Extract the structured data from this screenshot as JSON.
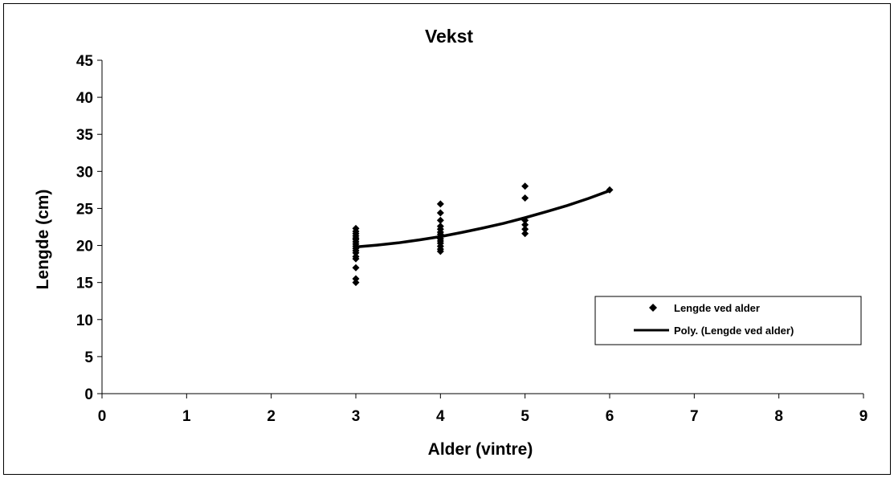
{
  "chart_data": {
    "type": "scatter",
    "title": "Vekst",
    "xlabel": "Alder (vintre)",
    "ylabel": "Lengde (cm)",
    "xlim": [
      0,
      9
    ],
    "ylim": [
      0,
      45
    ],
    "xticks": [
      0,
      1,
      2,
      3,
      4,
      5,
      6,
      7,
      8,
      9
    ],
    "yticks": [
      0,
      5,
      10,
      15,
      20,
      25,
      30,
      35,
      40,
      45
    ],
    "grid": false,
    "legend_position": "right",
    "series": [
      {
        "name": "Lengde ved alder",
        "kind": "scatter",
        "marker": "diamond",
        "color": "#000000",
        "points": [
          [
            3,
            15.0
          ],
          [
            3,
            15.5
          ],
          [
            3,
            17.0
          ],
          [
            3,
            18.2
          ],
          [
            3,
            18.5
          ],
          [
            3,
            19.0
          ],
          [
            3,
            19.3
          ],
          [
            3,
            19.6
          ],
          [
            3,
            19.9
          ],
          [
            3,
            20.2
          ],
          [
            3,
            20.5
          ],
          [
            3,
            20.8
          ],
          [
            3,
            21.0
          ],
          [
            3,
            21.3
          ],
          [
            3,
            21.6
          ],
          [
            3,
            21.9
          ],
          [
            3,
            22.3
          ],
          [
            4,
            19.2
          ],
          [
            4,
            19.5
          ],
          [
            4,
            19.9
          ],
          [
            4,
            20.3
          ],
          [
            4,
            20.6
          ],
          [
            4,
            20.9
          ],
          [
            4,
            21.2
          ],
          [
            4,
            21.5
          ],
          [
            4,
            21.8
          ],
          [
            4,
            22.2
          ],
          [
            4,
            22.6
          ],
          [
            4,
            23.4
          ],
          [
            4,
            24.4
          ],
          [
            4,
            25.6
          ],
          [
            5,
            21.6
          ],
          [
            5,
            22.2
          ],
          [
            5,
            22.8
          ],
          [
            5,
            23.4
          ],
          [
            5,
            26.4
          ],
          [
            5,
            28.0
          ],
          [
            6,
            27.5
          ]
        ]
      },
      {
        "name": "Poly. (Lengde ved alder)",
        "kind": "line",
        "color": "#000000",
        "x": [
          3.0,
          3.25,
          3.5,
          3.75,
          4.0,
          4.25,
          4.5,
          4.75,
          5.0,
          5.25,
          5.5,
          5.75,
          6.0
        ],
        "y": [
          19.8,
          20.05,
          20.35,
          20.75,
          21.2,
          21.75,
          22.35,
          23.0,
          23.75,
          24.55,
          25.4,
          26.35,
          27.4
        ]
      }
    ]
  }
}
